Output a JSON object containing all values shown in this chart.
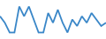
{
  "x": [
    0,
    1,
    2,
    3,
    4,
    5,
    6,
    7,
    8,
    9,
    10,
    11,
    12,
    13,
    14,
    15,
    16,
    17,
    18,
    19,
    20,
    21,
    22
  ],
  "y": [
    6,
    4,
    1,
    1,
    9,
    6,
    9,
    5,
    1,
    1,
    7,
    4,
    8,
    4,
    1,
    5,
    3,
    6,
    4,
    7,
    5,
    3,
    4
  ],
  "line_color": "#3a87c8",
  "linewidth": 1.3,
  "background_color": "#ffffff",
  "ylim": [
    -1,
    11
  ],
  "xlim": [
    0,
    22
  ]
}
